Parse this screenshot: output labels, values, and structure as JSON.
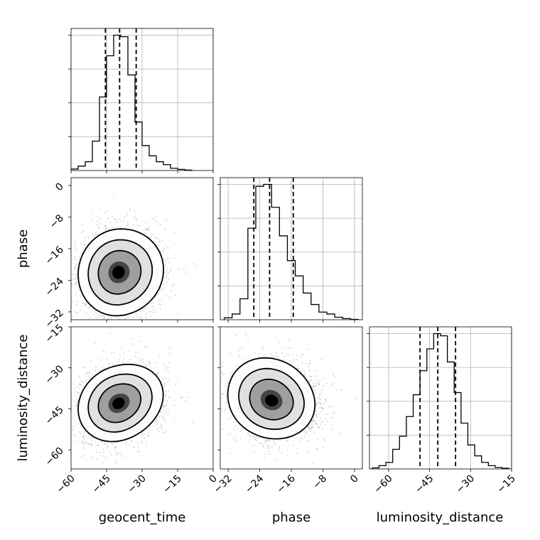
{
  "chart_data": {
    "type": "corner",
    "parameters": [
      {
        "name": "geocent_time",
        "label": "geocent_time",
        "range": [
          -60,
          0
        ],
        "ticks": [
          -60,
          -45,
          -30,
          -15,
          0
        ],
        "tick_labels": [
          "−60",
          "−45",
          "−30",
          "−15",
          "0"
        ],
        "quantiles": [
          -45.5,
          -39.5,
          -32.5
        ]
      },
      {
        "name": "phase",
        "label": "phase",
        "range": [
          -34,
          2
        ],
        "ticks": [
          -32,
          -24,
          -16,
          -8,
          0
        ],
        "tick_labels": [
          "−32",
          "−24",
          "−16",
          "−8",
          "0"
        ],
        "quantiles": [
          -25.5,
          -21.5,
          -15.5
        ]
      },
      {
        "name": "luminosity_distance",
        "label": "luminosity_distance",
        "range": [
          -67,
          -15
        ],
        "ticks": [
          -60,
          -45,
          -30,
          -15
        ],
        "tick_labels": [
          "−60",
          "−45",
          "−30",
          "−15"
        ],
        "quantiles": [
          -48.5,
          -42,
          -35.5
        ]
      }
    ],
    "histograms": [
      {
        "param": "geocent_time",
        "bin_edges": [
          -60,
          -57,
          -54,
          -51,
          -48,
          -45,
          -42,
          -39,
          -36,
          -33,
          -30,
          -27,
          -24,
          -21,
          -18,
          -15,
          -12,
          -9
        ],
        "counts": [
          1,
          3,
          6,
          20,
          50,
          78,
          92,
          91,
          65,
          33,
          17,
          10,
          6,
          4,
          1.5,
          0.8,
          0.3
        ]
      },
      {
        "param": "phase",
        "bin_edges": [
          -33,
          -31,
          -29,
          -27,
          -25,
          -23,
          -21,
          -19,
          -17,
          -15,
          -13,
          -11,
          -9,
          -7,
          -5,
          -3,
          -1,
          1
        ],
        "counts": [
          1,
          3,
          11,
          48,
          70,
          71,
          59,
          44,
          31,
          23,
          14,
          8,
          4,
          3,
          1.3,
          0.6,
          0.2
        ]
      },
      {
        "param": "luminosity_distance",
        "bin_edges": [
          -66,
          -63.5,
          -61,
          -58.5,
          -56,
          -53.5,
          -51,
          -48.5,
          -46,
          -43.5,
          -41,
          -38.5,
          -36,
          -33.5,
          -31,
          -28.5,
          -26,
          -23.5,
          -21,
          -18.5,
          -16
        ],
        "counts": [
          0.5,
          1.5,
          3,
          9,
          15,
          24,
          34,
          45,
          55,
          62,
          61,
          49,
          35,
          21,
          11,
          6,
          3,
          1.5,
          0.7,
          0.3
        ]
      }
    ],
    "joint": [
      {
        "x": "geocent_time",
        "y": "phase",
        "mean": [
          -40,
          -22
        ],
        "std": [
          8.5,
          5.5
        ],
        "corr": 0.05
      },
      {
        "x": "geocent_time",
        "y": "luminosity_distance",
        "mean": [
          -40,
          -43
        ],
        "std": [
          8.5,
          7.0
        ],
        "corr": 0.15
      },
      {
        "x": "phase",
        "y": "luminosity_distance",
        "mean": [
          -21,
          -42
        ],
        "std": [
          5.5,
          7.0
        ],
        "corr": -0.1
      }
    ],
    "axis_labels": {
      "x": [
        "geocent_time",
        "phase",
        "luminosity_distance"
      ],
      "y": [
        "phase",
        "luminosity_distance"
      ]
    },
    "grid": true,
    "legend": "none"
  }
}
